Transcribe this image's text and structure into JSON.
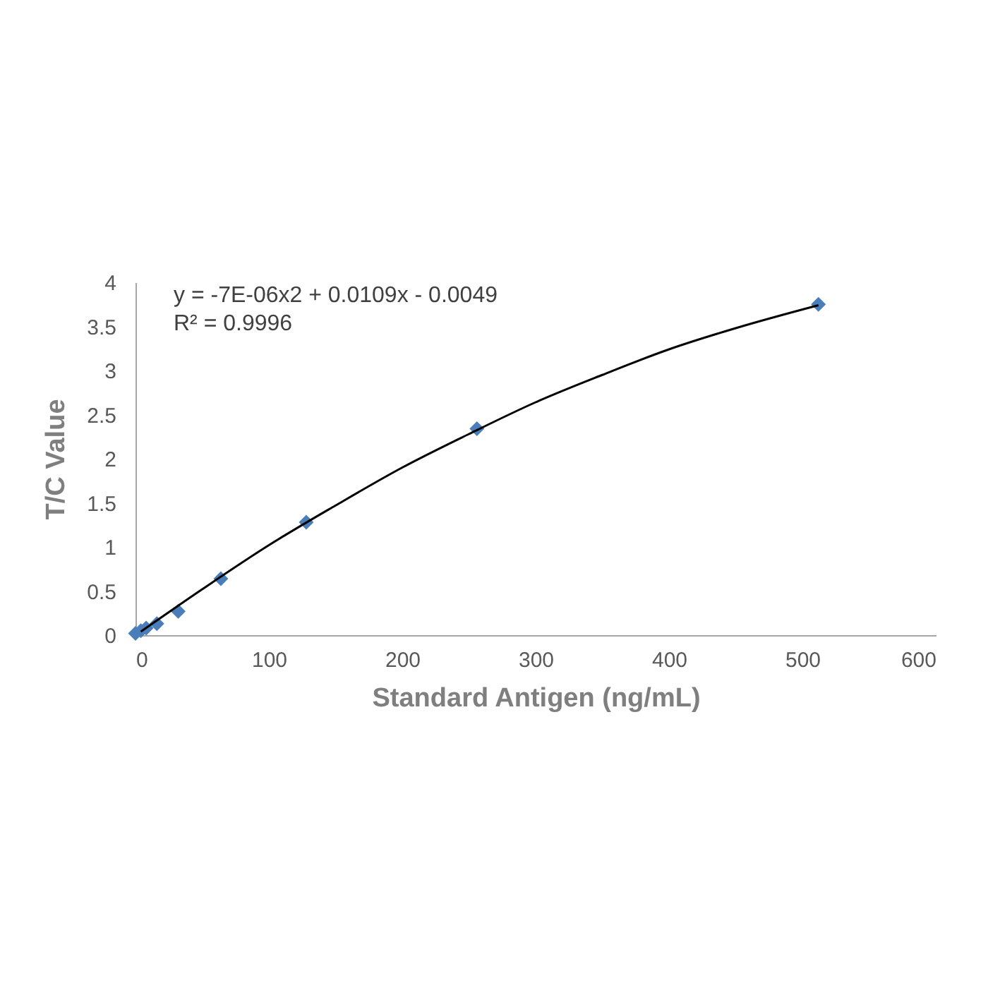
{
  "chart_data": {
    "type": "scatter",
    "xlabel": "Standard Antigen (ng/mL)",
    "ylabel": "T/C Value",
    "annotations": [
      "y = -7E-06x2 + 0.0109x - 0.0049",
      "R² = 0.9996"
    ],
    "xlim": [
      0,
      600
    ],
    "xticks": [
      0,
      100,
      200,
      300,
      400,
      500,
      600
    ],
    "ylim": [
      0,
      4
    ],
    "yticks": [
      0,
      0.5,
      1,
      1.5,
      2,
      2.5,
      3,
      3.5,
      4
    ],
    "grid": false,
    "series": [
      {
        "marker": "diamond",
        "color": "#4a7ebb",
        "x": [
          0,
          4,
          8,
          16,
          32,
          64,
          128,
          256,
          512
        ],
        "values": [
          0.02,
          0.05,
          0.08,
          0.13,
          0.27,
          0.64,
          1.28,
          2.34,
          3.75
        ]
      },
      {
        "type": "line",
        "marker": "none",
        "color": "#000000",
        "x": [
          4,
          50,
          100,
          150,
          200,
          250,
          300,
          350,
          400,
          450,
          512
        ],
        "values": [
          0.04,
          0.52,
          1.02,
          1.47,
          1.9,
          2.28,
          2.64,
          2.95,
          3.24,
          3.48,
          3.74
        ]
      }
    ]
  }
}
